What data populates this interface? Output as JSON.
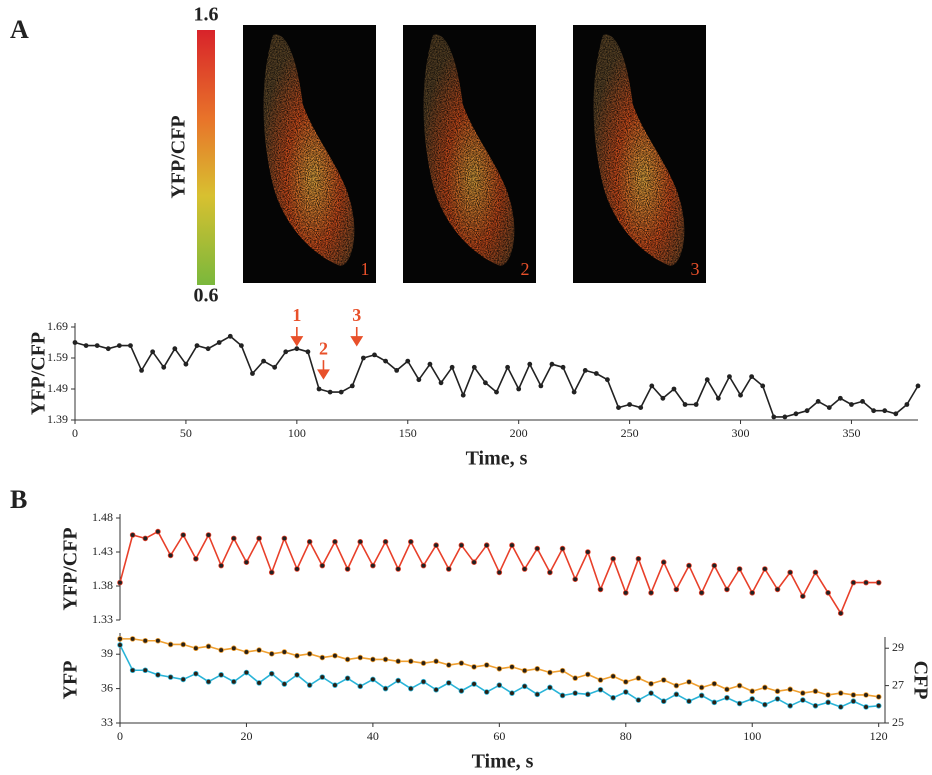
{
  "panel_a": {
    "label": "A",
    "colorbar": {
      "label": "YFP/CFP",
      "max": 1.6,
      "min": 0.6
    },
    "images": [
      {
        "label": "1"
      },
      {
        "label": "2"
      },
      {
        "label": "3"
      }
    ]
  },
  "panel_b": {
    "label": "B"
  },
  "chart_data": [
    {
      "type": "line",
      "y_label": "YFP/CFP",
      "x_label": "Time, s",
      "color": "#222222",
      "marker_color": "#222222",
      "x": [
        0,
        5,
        10,
        15,
        20,
        25,
        30,
        35,
        40,
        45,
        50,
        55,
        60,
        65,
        70,
        75,
        80,
        85,
        90,
        95,
        100,
        105,
        110,
        115,
        120,
        125,
        130,
        135,
        140,
        145,
        150,
        155,
        160,
        165,
        170,
        175,
        180,
        185,
        190,
        195,
        200,
        205,
        210,
        215,
        220,
        225,
        230,
        235,
        240,
        245,
        250,
        255,
        260,
        265,
        270,
        275,
        280,
        285,
        290,
        295,
        300,
        305,
        310,
        315,
        320,
        325,
        330,
        335,
        340,
        345,
        350,
        355,
        360,
        365,
        370,
        375,
        380
      ],
      "values": [
        1.64,
        1.63,
        1.63,
        1.62,
        1.63,
        1.63,
        1.55,
        1.61,
        1.56,
        1.62,
        1.57,
        1.63,
        1.62,
        1.64,
        1.66,
        1.63,
        1.54,
        1.58,
        1.56,
        1.61,
        1.62,
        1.61,
        1.49,
        1.48,
        1.48,
        1.5,
        1.59,
        1.6,
        1.58,
        1.55,
        1.58,
        1.52,
        1.57,
        1.51,
        1.56,
        1.47,
        1.56,
        1.51,
        1.48,
        1.56,
        1.49,
        1.57,
        1.5,
        1.57,
        1.56,
        1.48,
        1.55,
        1.54,
        1.52,
        1.43,
        1.44,
        1.43,
        1.5,
        1.46,
        1.49,
        1.44,
        1.44,
        1.52,
        1.46,
        1.53,
        1.47,
        1.53,
        1.5,
        1.4,
        1.4,
        1.41,
        1.42,
        1.45,
        1.43,
        1.46,
        1.44,
        1.45,
        1.42,
        1.42,
        1.41,
        1.44,
        1.5
      ],
      "xlim": [
        0,
        380
      ],
      "xticks": [
        0,
        50,
        100,
        150,
        200,
        250,
        300,
        350
      ],
      "ylim": [
        1.39,
        1.69
      ],
      "yticks": [
        1.39,
        1.49,
        1.59,
        1.69
      ],
      "annotations": [
        {
          "text": "1",
          "x": 100,
          "y": 1.632,
          "color": "#e8502a"
        },
        {
          "text": "2",
          "x": 112,
          "y": 1.525,
          "color": "#e8502a"
        },
        {
          "text": "3",
          "x": 127,
          "y": 1.632,
          "color": "#e8502a"
        }
      ]
    },
    {
      "type": "line",
      "y_label": "YFP/CFP",
      "color": "#e8402a",
      "marker_color": "#222222",
      "x": [
        0,
        2,
        4,
        6,
        8,
        10,
        12,
        14,
        16,
        18,
        20,
        22,
        24,
        26,
        28,
        30,
        32,
        34,
        36,
        38,
        40,
        42,
        44,
        46,
        48,
        50,
        52,
        54,
        56,
        58,
        60,
        62,
        64,
        66,
        68,
        70,
        72,
        74,
        76,
        78,
        80,
        82,
        84,
        86,
        88,
        90,
        92,
        94,
        96,
        98,
        100,
        102,
        104,
        106,
        108,
        110,
        112,
        114,
        116,
        118,
        120
      ],
      "values": [
        1.385,
        1.455,
        1.45,
        1.46,
        1.425,
        1.455,
        1.42,
        1.455,
        1.41,
        1.45,
        1.415,
        1.45,
        1.4,
        1.45,
        1.405,
        1.445,
        1.41,
        1.445,
        1.405,
        1.445,
        1.41,
        1.445,
        1.405,
        1.445,
        1.41,
        1.44,
        1.405,
        1.44,
        1.415,
        1.44,
        1.4,
        1.44,
        1.405,
        1.435,
        1.4,
        1.435,
        1.39,
        1.43,
        1.375,
        1.42,
        1.37,
        1.42,
        1.37,
        1.415,
        1.375,
        1.41,
        1.37,
        1.41,
        1.375,
        1.405,
        1.37,
        1.405,
        1.375,
        1.4,
        1.365,
        1.4,
        1.37,
        1.34,
        1.385,
        1.385,
        1.385
      ],
      "xlim": [
        0,
        121
      ],
      "ylim": [
        1.33,
        1.48
      ],
      "yticks": [
        1.33,
        1.38,
        1.43,
        1.48
      ]
    },
    {
      "type": "line",
      "y_label": "YFP",
      "y2_label": "CFP",
      "x_label": "Time, s",
      "marker_color": "#2a2015",
      "x": [
        0,
        2,
        4,
        6,
        8,
        10,
        12,
        14,
        16,
        18,
        20,
        22,
        24,
        26,
        28,
        30,
        32,
        34,
        36,
        38,
        40,
        42,
        44,
        46,
        48,
        50,
        52,
        54,
        56,
        58,
        60,
        62,
        64,
        66,
        68,
        70,
        72,
        74,
        76,
        78,
        80,
        82,
        84,
        86,
        88,
        90,
        92,
        94,
        96,
        98,
        100,
        102,
        104,
        106,
        108,
        110,
        112,
        114,
        116,
        118,
        120
      ],
      "series": [
        {
          "color": "#2ab4d8",
          "values": [
            39.8,
            37.6,
            37.6,
            37.2,
            37.0,
            36.8,
            37.3,
            36.6,
            37.2,
            36.6,
            37.4,
            36.5,
            37.3,
            36.4,
            37.2,
            36.3,
            37.0,
            36.3,
            36.9,
            36.2,
            36.8,
            36.0,
            36.7,
            36.0,
            36.6,
            35.9,
            36.5,
            35.8,
            36.4,
            35.7,
            36.3,
            35.6,
            36.2,
            35.5,
            36.1,
            35.4,
            35.6,
            35.5,
            35.9,
            35.2,
            35.7,
            35.0,
            35.6,
            34.9,
            35.5,
            34.9,
            35.4,
            34.8,
            35.2,
            34.7,
            35.1,
            34.6,
            35.1,
            34.5,
            35.0,
            34.5,
            34.8,
            34.4,
            34.9,
            34.4,
            34.5
          ]
        },
        {
          "color": "#f0a030",
          "axis": "y2",
          "values": [
            29.5,
            29.5,
            29.4,
            29.4,
            29.2,
            29.2,
            29.0,
            29.1,
            28.9,
            29.0,
            28.8,
            28.9,
            28.7,
            28.8,
            28.6,
            28.7,
            28.5,
            28.6,
            28.4,
            28.5,
            28.4,
            28.4,
            28.3,
            28.3,
            28.2,
            28.3,
            28.1,
            28.2,
            28.0,
            28.1,
            27.9,
            28.0,
            27.8,
            27.9,
            27.7,
            27.8,
            27.4,
            27.6,
            27.3,
            27.5,
            27.2,
            27.4,
            27.1,
            27.3,
            27.0,
            27.2,
            26.9,
            27.1,
            26.8,
            27.0,
            26.7,
            26.9,
            26.7,
            26.8,
            26.6,
            26.7,
            26.5,
            26.6,
            26.5,
            26.5,
            26.4
          ]
        }
      ],
      "xlim": [
        0,
        121
      ],
      "xticks": [
        0,
        20,
        40,
        60,
        80,
        100,
        120
      ],
      "ylim": [
        33,
        40.5
      ],
      "yticks": [
        33,
        36,
        39
      ],
      "y2lim": [
        25,
        29.6
      ],
      "y2ticks": [
        25,
        27,
        29
      ]
    }
  ]
}
